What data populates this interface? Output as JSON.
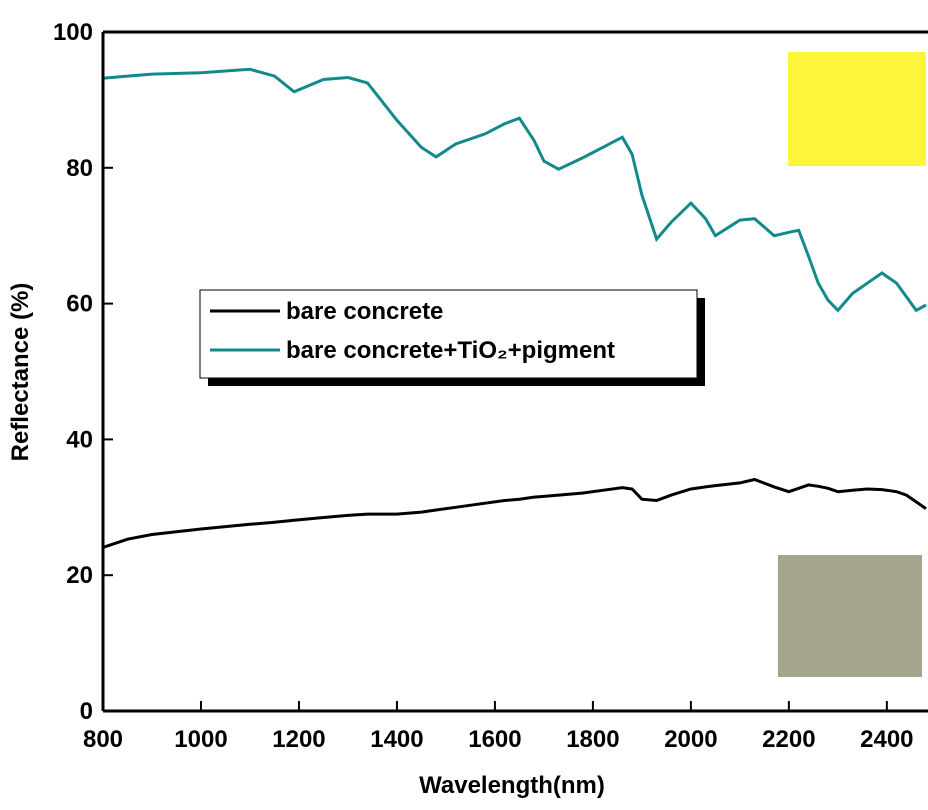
{
  "chart_data": {
    "type": "line",
    "x_label": "Wavelength(nm)",
    "y_label": "Reflectance (%)",
    "x": [
      800,
      850,
      900,
      1000,
      1100,
      1150,
      1190,
      1250,
      1300,
      1340,
      1400,
      1450,
      1480,
      1520,
      1580,
      1620,
      1650,
      1680,
      1700,
      1730,
      1780,
      1820,
      1860,
      1880,
      1900,
      1930,
      1960,
      2000,
      2030,
      2050,
      2100,
      2130,
      2170,
      2200,
      2220,
      2240,
      2260,
      2280,
      2300,
      2330,
      2360,
      2390,
      2420,
      2440,
      2460,
      2480
    ],
    "series": [
      {
        "name": "bare concrete",
        "color": "#000000",
        "values": [
          24.1,
          25.3,
          26,
          26.8,
          27.5,
          27.8,
          28.1,
          28.5,
          28.8,
          29,
          29,
          29.3,
          29.6,
          30,
          30.6,
          31,
          31.2,
          31.5,
          31.6,
          31.8,
          32.1,
          32.5,
          32.9,
          32.7,
          31.2,
          31,
          31.8,
          32.7,
          33,
          33.2,
          33.6,
          34.1,
          33,
          32.3,
          32.8,
          33.3,
          33.1,
          32.8,
          32.3,
          32.5,
          32.7,
          32.6,
          32.3,
          31.8,
          30.8,
          29.8
        ]
      },
      {
        "name": "bare concrete+TiO₂+pigment",
        "color": "#138a8a",
        "values": [
          93.2,
          93.5,
          93.8,
          94,
          94.5,
          93.5,
          91.2,
          93,
          93.3,
          92.5,
          87,
          83,
          81.6,
          83.5,
          85,
          86.5,
          87.3,
          84,
          81,
          79.8,
          81.5,
          83,
          84.5,
          82,
          76,
          69.5,
          72,
          74.8,
          72.5,
          70,
          72.3,
          72.5,
          70,
          70.5,
          70.8,
          67,
          63,
          60.5,
          59,
          61.5,
          63,
          64.5,
          63,
          61,
          59,
          59.8
        ]
      }
    ],
    "xlim": [
      800,
      2484
    ],
    "ylim": [
      0,
      100
    ],
    "xticks": [
      800,
      1000,
      1200,
      1400,
      1600,
      1800,
      2000,
      2200,
      2400
    ],
    "yticks": [
      0,
      20,
      40,
      60,
      80,
      100
    ]
  }
}
